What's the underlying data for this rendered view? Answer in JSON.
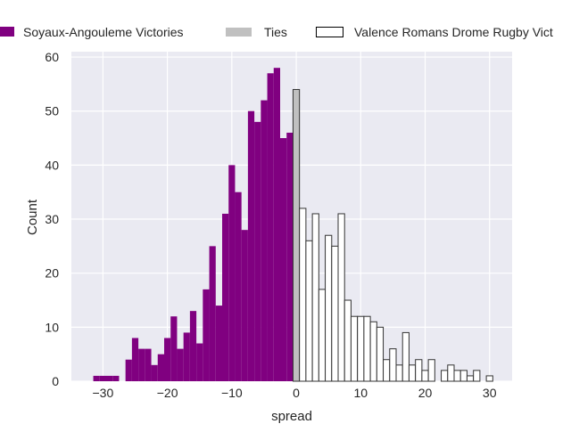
{
  "chart_data": {
    "type": "bar",
    "title": "",
    "xlabel": "spread",
    "ylabel": "Count",
    "xlim": [
      -34.9,
      33.5
    ],
    "ylim": [
      0,
      61
    ],
    "xticks": [
      -30,
      -20,
      -10,
      0,
      10,
      20,
      30
    ],
    "xtick_labels": [
      "−30",
      "−20",
      "−10",
      "0",
      "10",
      "20",
      "30"
    ],
    "yticks": [
      0,
      10,
      20,
      30,
      40,
      50,
      60
    ],
    "ytick_labels": [
      "0",
      "10",
      "20",
      "30",
      "40",
      "50",
      "60"
    ],
    "grid": true,
    "background": "#eaeaf2",
    "bin_width": 1,
    "legend_position": "top, above plot",
    "series": [
      {
        "name": "Soyaux-Angouleme Victories",
        "color": "#800080",
        "edge": "none",
        "x": [
          -31,
          -30,
          -29,
          -28,
          -27,
          -26,
          -25,
          -24,
          -23,
          -22,
          -21,
          -20,
          -19,
          -18,
          -17,
          -16,
          -15,
          -14,
          -13,
          -12,
          -11,
          -10,
          -9,
          -8,
          -7,
          -6,
          -5,
          -4,
          -3,
          -2,
          -1
        ],
        "values": [
          1,
          1,
          1,
          1,
          0,
          4,
          8,
          6,
          6,
          3,
          5,
          8,
          12,
          6,
          9,
          13,
          7,
          17,
          25,
          14,
          31,
          40,
          35,
          28,
          50,
          48,
          52,
          57,
          58,
          45,
          46
        ]
      },
      {
        "name": "Ties",
        "color": "#c0c0c0",
        "edge": "#333333",
        "x": [
          0
        ],
        "values": [
          54
        ]
      },
      {
        "name": "Valence Romans Drome Rugby Vict",
        "color": "#ffffff",
        "edge": "#333333",
        "x": [
          1,
          2,
          3,
          4,
          5,
          6,
          7,
          8,
          9,
          10,
          11,
          12,
          13,
          14,
          15,
          16,
          17,
          18,
          19,
          20,
          21,
          22,
          23,
          24,
          25,
          26,
          27,
          28,
          29,
          30
        ],
        "values": [
          32,
          26,
          31,
          17,
          27,
          25,
          31,
          15,
          12,
          12,
          12,
          11,
          10,
          4,
          6,
          3,
          9,
          3,
          4,
          2,
          4,
          0,
          2,
          3,
          2,
          2,
          1,
          2,
          0,
          1
        ]
      }
    ]
  }
}
